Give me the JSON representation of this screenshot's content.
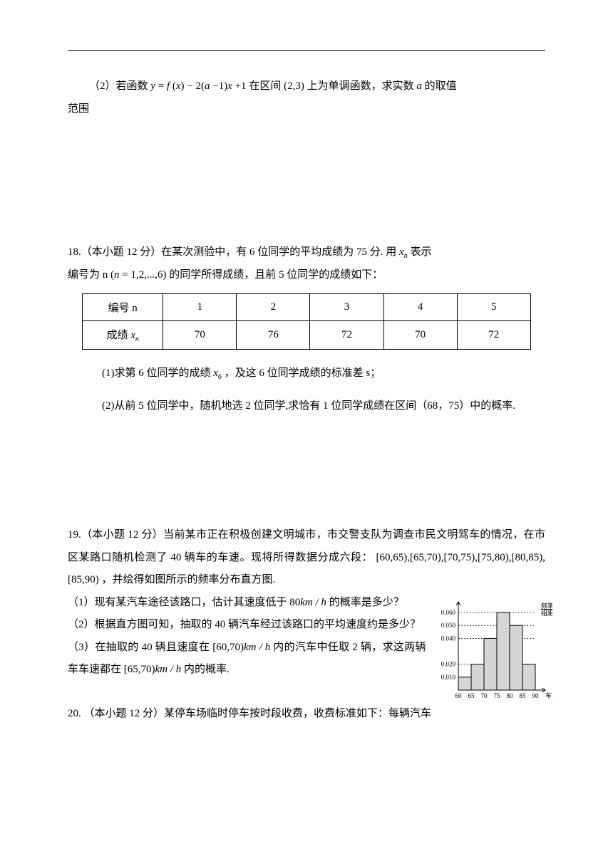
{
  "q2": {
    "prefix": "（2）若函数 ",
    "formula_html": "<span class='math'>y</span> = <span class='math'>f</span> (<span class='math'>x</span>) − 2(<span class='math'>a</span> − 1)<span class='math'>x</span> + 1",
    "mid": " 在区间 ",
    "interval": "(2,3)",
    "tail": " 上为单调函数，求实数 ",
    "var": "a",
    "tail2": " 的取值",
    "line2": "范围"
  },
  "q18": {
    "line1_a": "18.（本小题 12 分）在某次测验中，有 6 位同学的平均成绩为 75 分. 用 ",
    "line1_xn_html": "<span class='math'>x</span><span class='sub'>n</span>",
    "line1_b": " 表示",
    "line2_a": "编号为 n",
    "line2_paren": "(<span class='math'>n</span> = 1,2,...,6)",
    "line2_b": "的同学所得成绩，且前 5 位同学的成绩如下：",
    "table": {
      "header_label": "编号 n",
      "columns": [
        "1",
        "2",
        "3",
        "4",
        "5"
      ],
      "row_label_html": "成绩 <span class='math'>x</span><span class='sub'>n</span>",
      "rows": [
        [
          "70",
          "76",
          "72",
          "70",
          "72"
        ]
      ]
    },
    "sub1_a": "(1)求第 6 位同学的成绩 ",
    "sub1_x6_html": "<span class='math'>x</span><span class='sub'>6</span>",
    "sub1_b": " ，及这 6 位同学成绩的标准差 s；",
    "sub2": "(2)从前 5 位同学中，随机地选 2 位同学,求恰有 1 位同学成绩在区间（68，75）中的概率."
  },
  "q19": {
    "line1": "19.（本小题 12 分）当前某市正在积极创建文明城市，市交警支队为调查市民文明驾车的情况，在市区某路口随机检测了 40 辆车的车速。现将所得数据分成六段：",
    "intervals": "[60,65),[65,70),[70,75),[75,80),[80,85),[85,90)",
    "line1b": "，并绘得如图所示的频率分布直方图.",
    "sub1_a": "（1）现有某汽车途径该路口，估计其速度低于 80",
    "unit": "km / h",
    "sub1_b": " 的概率是多少？",
    "sub2": "（2）根据直方图可知，抽取的 40 辆汽车经过该路口的平均速度约是多少？",
    "sub3_a": "（3）在抽取的 40 辆且速度在 ",
    "sub3_int1": "[60,70)",
    "sub3_b": " 内的汽车中任取 2 辆，求这两辆车车速都在 ",
    "sub3_int2": "[65,70)",
    "sub3_c": " 内的概率.",
    "chart": {
      "ylabel_top": "频率",
      "ylabel_bot": "组距",
      "yticks": [
        "0.010",
        "0.020",
        "0.040",
        "0.050",
        "0.060"
      ],
      "yvalues": [
        0.01,
        0.02,
        0.04,
        0.05,
        0.06
      ],
      "xticks": [
        "60",
        "65",
        "70",
        "75",
        "80",
        "85",
        "90"
      ],
      "xlabel": "车速",
      "bars": [
        0.01,
        0.02,
        0.04,
        0.06,
        0.05,
        0.02
      ],
      "bar_fill": "#d6d6d6",
      "bar_stroke": "#000000",
      "axis_color": "#000000",
      "bg": "#ffffff",
      "font_size": 9
    }
  },
  "q20": {
    "text": "20. （本小题 12 分）某停车场临时停车按时段收费，收费标准如下：每辆汽车"
  }
}
